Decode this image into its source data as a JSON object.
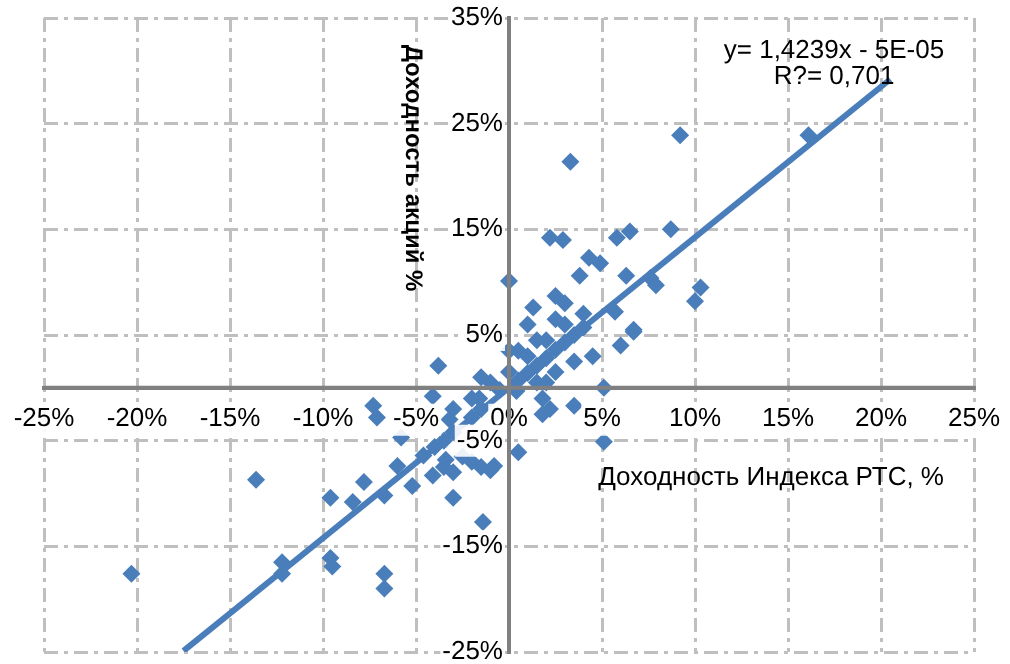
{
  "chart_data": {
    "type": "scatter",
    "xlabel": "Доходность Индекса РТС, %",
    "ylabel": "Доходность акций %",
    "annotations": [
      "y= 1,4239x - 5E-05",
      "R?= 0,701"
    ],
    "xlim": [
      -25,
      25
    ],
    "xticks": [
      {
        "value": -25,
        "label": "-25%"
      },
      {
        "value": -20,
        "label": "-20%"
      },
      {
        "value": -15,
        "label": "-15%"
      },
      {
        "value": -10,
        "label": "-10%"
      },
      {
        "value": -5,
        "label": "-5%"
      },
      {
        "value": 0,
        "label": "0%"
      },
      {
        "value": 5,
        "label": "5%"
      },
      {
        "value": 10,
        "label": "10%"
      },
      {
        "value": 15,
        "label": "15%"
      },
      {
        "value": 20,
        "label": "20%"
      },
      {
        "value": 25,
        "label": "25%"
      }
    ],
    "ylim": [
      -25,
      35
    ],
    "yticks": [
      {
        "value": -25,
        "label": "-25%"
      },
      {
        "value": -15,
        "label": "-15%"
      },
      {
        "value": -5,
        "label": "-5%"
      },
      {
        "value": 5,
        "label": "5%"
      },
      {
        "value": 15,
        "label": "15%"
      },
      {
        "value": 25,
        "label": "25%"
      },
      {
        "value": 35,
        "label": "35%"
      }
    ],
    "grid": true,
    "legend": false,
    "marker": "diamond",
    "series": [
      {
        "type": "scatter",
        "color": "#4a7ebb",
        "x": [
          9.2,
          16.1,
          3.3,
          2.2,
          2.9,
          5.8,
          6.5,
          8.7,
          0,
          4.3,
          4.9,
          10.3,
          10,
          7.6,
          7.9,
          6.3,
          1.3,
          2.5,
          5.7,
          6.7,
          3.8,
          6.7,
          6.0,
          5.1,
          5.1,
          3.5,
          0.5,
          -0.8,
          -1.4,
          -3.8,
          -4.1,
          -7.3,
          -7.1,
          -5.8,
          -6.0,
          -13.6,
          -9.6,
          -7.8,
          -8.4,
          -6.7,
          -5.2,
          -3.0,
          -20.3,
          -12.2,
          -12.2,
          -9.6,
          -9.5,
          -6.7,
          -6.7,
          -4.1,
          -4.6,
          -3.5,
          -3.0,
          -3.2,
          -2.0,
          -1.5,
          -1.6,
          -0.5,
          0.5,
          1.0,
          1.5,
          2.0,
          2.5,
          3.0,
          3.5,
          4.0,
          -3.0,
          -2.0,
          -1.0,
          0,
          1.0,
          2.0,
          3.0,
          4.0,
          -2.5,
          -3.4,
          0.4,
          1.8,
          1.5,
          2.5,
          3.5,
          -3.5,
          -1.5,
          -1.0,
          0.5,
          1.5,
          2.5,
          1.8,
          2.2,
          2.0,
          -4.0,
          -3.0,
          -2.0,
          -1.5,
          0,
          1.0,
          3.0,
          4.5
        ],
        "values": [
          23.9,
          23.9,
          21.4,
          14.2,
          14.0,
          14.2,
          14.8,
          15.0,
          10.1,
          12.3,
          11.8,
          9.5,
          8.2,
          10.4,
          9.7,
          10.6,
          7.6,
          8.7,
          7.2,
          5.5,
          10.6,
          5.3,
          4.0,
          0,
          -5.1,
          -1.7,
          -6.1,
          -7.4,
          -12.7,
          2.1,
          -0.8,
          -1.7,
          -2.8,
          -4.7,
          -7.4,
          -8.7,
          -10.4,
          -8.9,
          -10.8,
          -10.2,
          -9.3,
          -10.4,
          -17.6,
          -16.5,
          -17.6,
          -16.1,
          -16.9,
          -17.6,
          -19.0,
          -8.3,
          -6.4,
          -5.0,
          -4.2,
          -3.0,
          -2.8,
          -2.0,
          -1.0,
          -0.2,
          0.7,
          1.4,
          2.1,
          2.8,
          3.6,
          4.3,
          5.0,
          5.7,
          -2.0,
          -1.0,
          0.5,
          1.5,
          3.0,
          4.5,
          6.0,
          7.0,
          -6.5,
          -6.8,
          -0.3,
          -1.0,
          0.5,
          1.5,
          2.5,
          -7.5,
          -7.5,
          -7.8,
          3.5,
          4.5,
          6.5,
          -2.5,
          -2.0,
          0.5,
          -5.6,
          -8.0,
          -7.0,
          1.0,
          3.5,
          6.0,
          8.0,
          3.0
        ]
      },
      {
        "type": "line",
        "color": "#4a7ebb",
        "marker": "none",
        "x": [
          -17.5,
          20.5
        ],
        "values": [
          -24.9,
          29.2
        ]
      }
    ]
  }
}
